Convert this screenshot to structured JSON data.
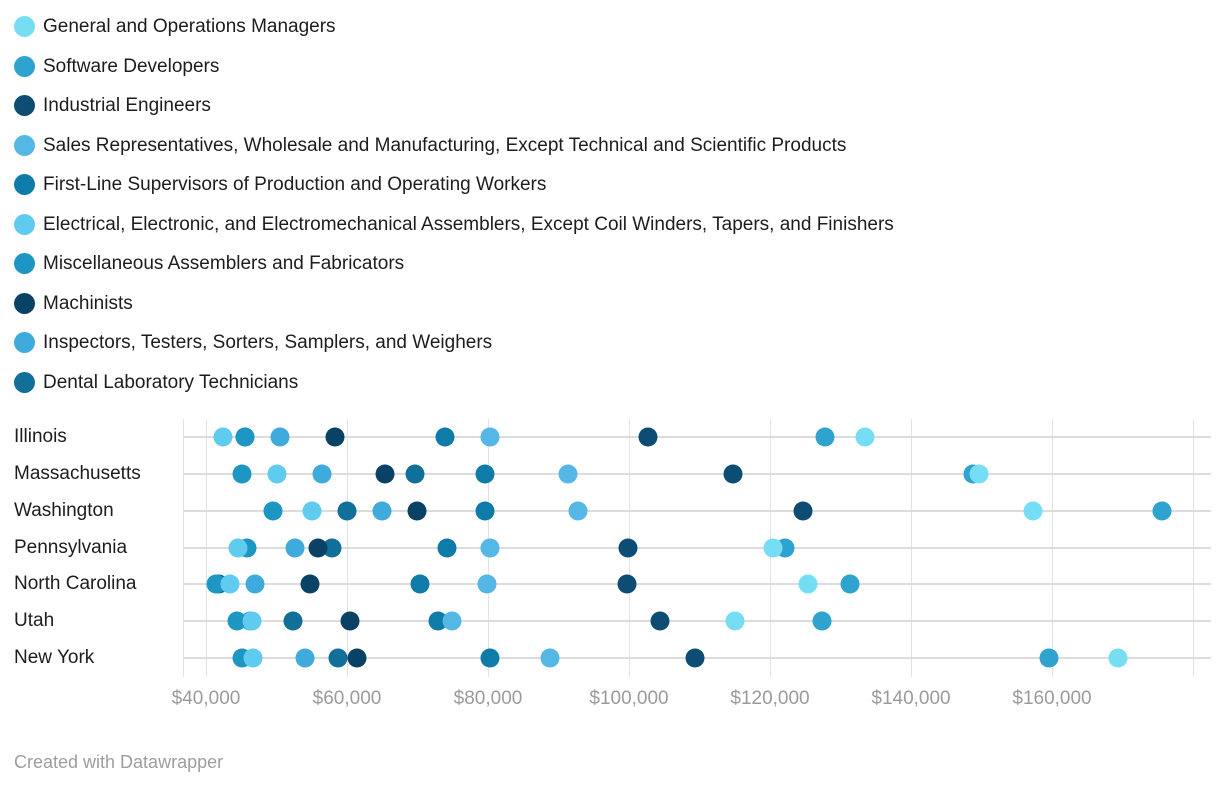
{
  "legend": {
    "items": [
      {
        "label": "General and Operations Managers",
        "color": "#76def4"
      },
      {
        "label": "Software Developers",
        "color": "#2ea3cf"
      },
      {
        "label": "Industrial Engineers",
        "color": "#0d4d74"
      },
      {
        "label": "Sales Representatives, Wholesale and Manufacturing, Except Technical and Scientific Products",
        "color": "#55b7e5"
      },
      {
        "label": "First-Line Supervisors of Production and Operating Workers",
        "color": "#0e7ba8"
      },
      {
        "label": "Electrical, Electronic, and Electromechanical Assemblers, Except Coil Winders, Tapers, and Finishers",
        "color": "#5fccef"
      },
      {
        "label": "Miscellaneous Assemblers and Fabricators",
        "color": "#1e96c4"
      },
      {
        "label": "Machinists",
        "color": "#0a4265"
      },
      {
        "label": "Inspectors, Testers, Sorters, Samplers, and Weighers",
        "color": "#3faadc"
      },
      {
        "label": "Dental Laboratory Technicians",
        "color": "#116f9a"
      }
    ]
  },
  "chart_data": {
    "type": "scatter",
    "title": "",
    "legend_position": "top",
    "grid": true,
    "categories": [
      "Illinois",
      "Massachusetts",
      "Washington",
      "Pennsylvania",
      "North Carolina",
      "Utah",
      "New York"
    ],
    "series": [
      {
        "name": "General and Operations Managers",
        "color": "#76def4",
        "values": [
          133500,
          149600,
          157300,
          120400,
          125400,
          115000,
          169400
        ]
      },
      {
        "name": "Software Developers",
        "color": "#2ea3cf",
        "values": [
          127800,
          148800,
          175600,
          122100,
          131300,
          127400,
          159600
        ]
      },
      {
        "name": "Industrial Engineers",
        "color": "#0d4d74",
        "values": [
          102700,
          114700,
          124700,
          99900,
          99700,
          104400,
          109400
        ]
      },
      {
        "name": "Sales Representatives, Wholesale and Manufacturing, Except Technical and Scientific Products",
        "color": "#55b7e5",
        "values": [
          80300,
          91300,
          92800,
          80300,
          79900,
          74900,
          88800
        ]
      },
      {
        "name": "First-Line Supervisors of Production and Operating Workers",
        "color": "#0e7ba8",
        "values": [
          73900,
          79600,
          79600,
          74200,
          70400,
          72900,
          80300
        ]
      },
      {
        "name": "Electrical, Electronic, and Electromechanical Assemblers, Except Coil Winders, Tapers, and Finishers",
        "color": "#5fccef",
        "values": [
          42400,
          50100,
          55000,
          44500,
          43400,
          46500,
          46700
        ]
      },
      {
        "name": "Miscellaneous Assemblers and Fabricators",
        "color": "#1e96c4",
        "values": [
          45500,
          45100,
          49500,
          45800,
          41400,
          44400,
          45100
        ]
      },
      {
        "name": "Machinists",
        "color": "#0a4265",
        "values": [
          58300,
          65400,
          69900,
          55900,
          54700,
          60400,
          61400
        ]
      },
      {
        "name": "Inspectors, Testers, Sorters, Samplers, and Weighers",
        "color": "#3faadc",
        "values": [
          50500,
          56500,
          65000,
          52600,
          47000,
          46300,
          54000
        ]
      },
      {
        "name": "Dental Laboratory Technicians",
        "color": "#116f9a",
        "values": [
          45500,
          69600,
          60000,
          57900,
          41800,
          52300,
          58700
        ]
      }
    ],
    "x_axis": {
      "ticks": [
        {
          "value": 40000,
          "label": "$40,000"
        },
        {
          "value": 60000,
          "label": "$60,000"
        },
        {
          "value": 80000,
          "label": "$80,000"
        },
        {
          "value": 100000,
          "label": "$100,000"
        },
        {
          "value": 120000,
          "label": "$120,000"
        },
        {
          "value": 140000,
          "label": "$140,000"
        },
        {
          "value": 160000,
          "label": "$160,000"
        },
        {
          "value": 180000,
          "label": ""
        }
      ],
      "xlim": [
        36700,
        182000
      ]
    },
    "xlabel": "",
    "ylabel": ""
  },
  "footer": {
    "credit": "Created with Datawrapper"
  }
}
